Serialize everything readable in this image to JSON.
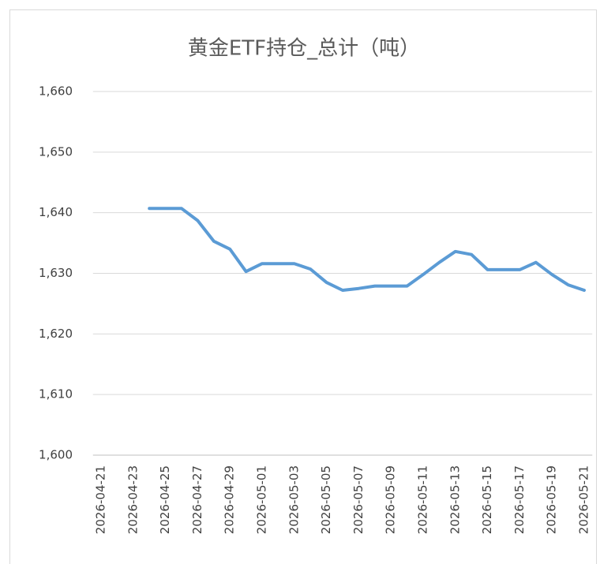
{
  "chart_data": {
    "type": "line",
    "title": "黄金ETF持仓_总计（吨）",
    "categories": [
      "2026-04-21",
      null,
      "2026-04-23",
      null,
      "2026-04-25",
      null,
      "2026-04-27",
      null,
      "2026-04-29",
      null,
      "2026-05-01",
      null,
      "2026-05-03",
      null,
      "2026-05-05",
      null,
      "2026-05-07",
      null,
      "2026-05-09",
      null,
      "2026-05-11",
      null,
      "2026-05-13",
      null,
      "2026-05-15",
      null,
      "2026-05-17",
      null,
      "2026-05-19",
      null,
      "2026-05-21"
    ],
    "series": [
      {
        "name": "黄金ETF持仓_总计",
        "color": "#5b9bd5",
        "values": [
          null,
          null,
          null,
          1640.7,
          1640.7,
          1640.7,
          1638.7,
          1635.3,
          1634.0,
          1630.3,
          1631.6,
          1631.6,
          1631.6,
          1630.7,
          1628.5,
          1627.2,
          1627.5,
          1627.9,
          1627.9,
          1627.9,
          1629.8,
          1631.8,
          1633.6,
          1633.1,
          1630.6,
          1630.6,
          1630.6,
          1631.8,
          1629.8,
          1628.1,
          1627.2
        ]
      }
    ],
    "ylim": [
      1600,
      1660
    ],
    "yticks": [
      {
        "value": 1600,
        "label": "1,600"
      },
      {
        "value": 1610,
        "label": "1,610"
      },
      {
        "value": 1620,
        "label": "1,620"
      },
      {
        "value": 1630,
        "label": "1,630"
      },
      {
        "value": 1640,
        "label": "1,640"
      },
      {
        "value": 1650,
        "label": "1,650"
      },
      {
        "value": 1660,
        "label": "1,660"
      }
    ],
    "grid": true
  }
}
